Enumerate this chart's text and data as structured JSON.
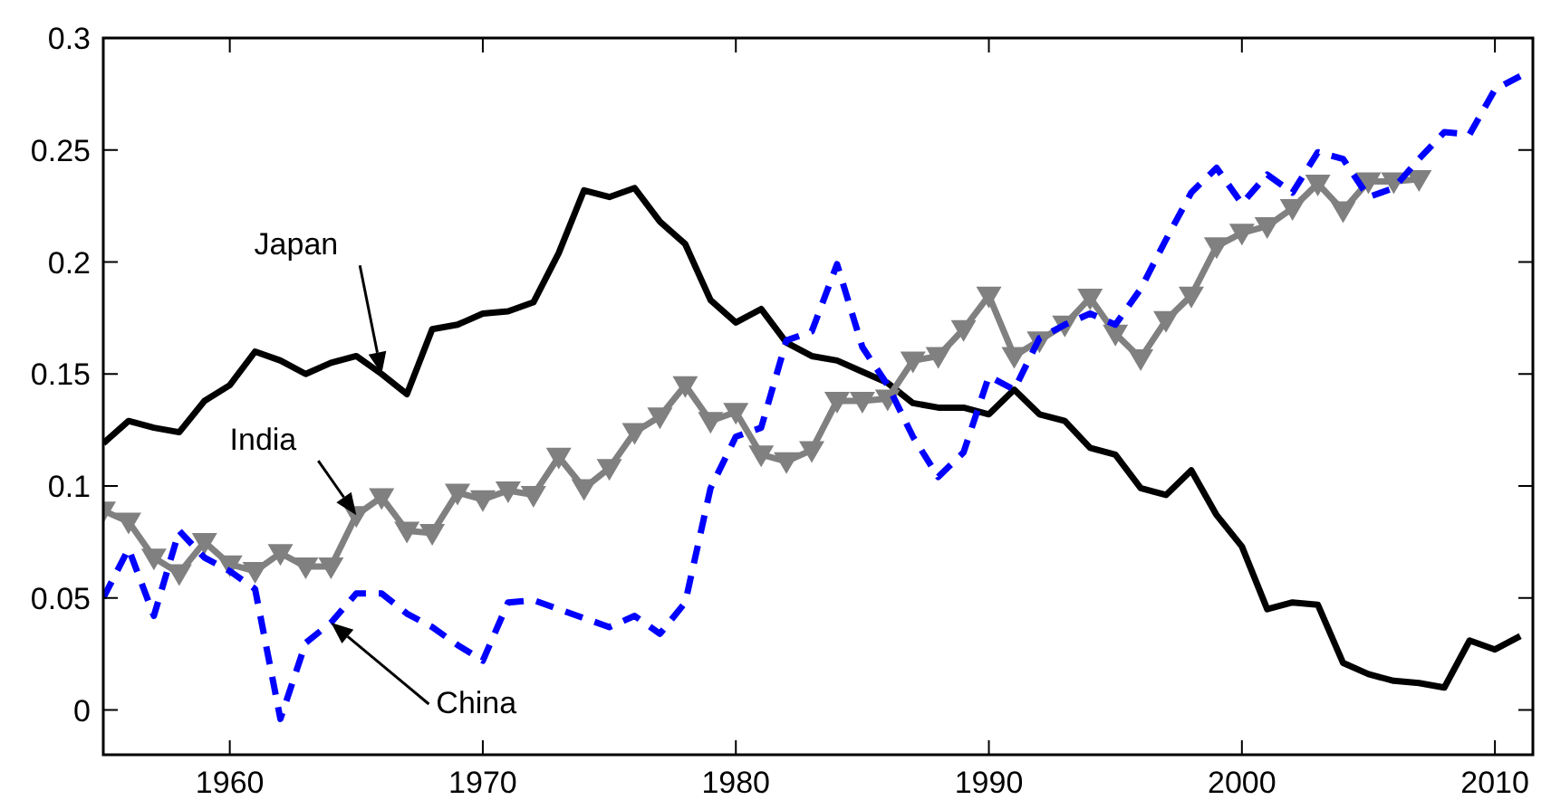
{
  "chart_data": {
    "type": "line",
    "x": [
      1955,
      1956,
      1957,
      1958,
      1959,
      1960,
      1961,
      1962,
      1963,
      1964,
      1965,
      1966,
      1967,
      1968,
      1969,
      1970,
      1971,
      1972,
      1973,
      1974,
      1975,
      1976,
      1977,
      1978,
      1979,
      1980,
      1981,
      1982,
      1983,
      1984,
      1985,
      1986,
      1987,
      1988,
      1989,
      1990,
      1991,
      1992,
      1993,
      1994,
      1995,
      1996,
      1997,
      1998,
      1999,
      2000,
      2001,
      2002,
      2003,
      2004,
      2005,
      2006,
      2007,
      2008,
      2009,
      2010,
      2011
    ],
    "series": [
      {
        "name": "Japan",
        "color": "#000000",
        "marker": "none",
        "line_style": "solid",
        "values": [
          0.119,
          0.129,
          0.126,
          0.124,
          0.138,
          0.145,
          0.16,
          0.156,
          0.15,
          0.155,
          0.158,
          0.15,
          0.141,
          0.17,
          0.172,
          0.177,
          0.178,
          0.182,
          0.204,
          0.232,
          0.229,
          0.233,
          0.218,
          0.208,
          0.183,
          0.173,
          0.179,
          0.164,
          0.158,
          0.156,
          0.151,
          0.146,
          0.137,
          0.135,
          0.135,
          0.132,
          0.143,
          0.132,
          0.129,
          0.117,
          0.114,
          0.099,
          0.096,
          0.107,
          0.087,
          0.073,
          0.045,
          0.048,
          0.047,
          0.021,
          0.016,
          0.013,
          0.012,
          0.01,
          0.031,
          0.027,
          0.033
        ]
      },
      {
        "name": "India",
        "color": "#808080",
        "marker": "triangle",
        "line_style": "solid",
        "values": [
          0.089,
          0.084,
          0.068,
          0.061,
          0.075,
          0.065,
          0.062,
          0.07,
          0.064,
          0.064,
          0.087,
          0.095,
          0.08,
          0.079,
          0.097,
          0.094,
          0.098,
          0.096,
          0.113,
          0.099,
          0.108,
          0.124,
          0.131,
          0.145,
          0.129,
          0.133,
          0.114,
          0.111,
          0.116,
          0.138,
          0.138,
          0.139,
          0.156,
          0.158,
          0.17,
          0.185,
          0.158,
          0.165,
          0.172,
          0.184,
          0.168,
          0.157,
          0.174,
          0.185,
          0.207,
          0.213,
          0.216,
          0.224,
          0.235,
          0.223,
          0.236,
          0.236,
          0.237,
          null,
          null,
          null,
          null
        ]
      },
      {
        "name": "China",
        "color": "#0000ff",
        "marker": "none",
        "line_style": "dashed",
        "values": [
          0.05,
          0.072,
          0.042,
          0.08,
          0.068,
          0.062,
          0.054,
          -0.004,
          0.03,
          0.039,
          0.052,
          0.052,
          0.043,
          0.037,
          0.029,
          0.022,
          0.048,
          0.049,
          0.045,
          0.041,
          0.037,
          0.042,
          0.034,
          0.048,
          0.099,
          0.122,
          0.126,
          0.165,
          0.169,
          0.199,
          0.162,
          0.145,
          0.122,
          0.104,
          0.115,
          0.149,
          0.143,
          0.166,
          0.172,
          0.177,
          0.172,
          0.188,
          0.21,
          0.231,
          0.242,
          0.226,
          0.239,
          0.231,
          0.249,
          0.246,
          0.229,
          0.233,
          0.246,
          0.258,
          0.257,
          0.277,
          0.283
        ]
      }
    ],
    "xlim": [
      1955,
      2011.5
    ],
    "xticks": [
      1960,
      1970,
      1980,
      1990,
      2000,
      2010
    ],
    "ylim": [
      -0.02,
      0.3
    ],
    "yticks": [
      0,
      0.05,
      0.1,
      0.15,
      0.2,
      0.25,
      0.3
    ],
    "grid": false,
    "legend": false
  }
}
